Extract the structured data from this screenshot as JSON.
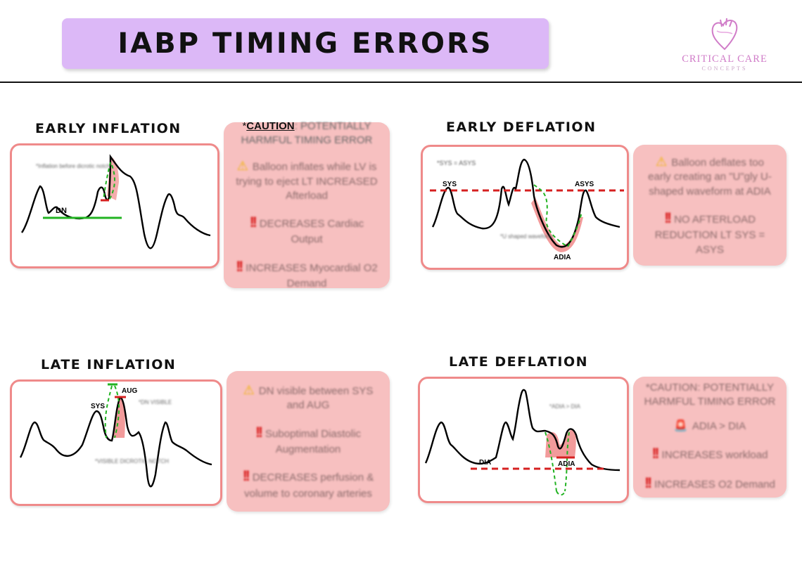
{
  "header": {
    "title": "IABP TIMING ERRORS",
    "logo_name": "CRITICAL CARE",
    "logo_sub": "CONCEPTS"
  },
  "colors": {
    "banner": "#dcb8f7",
    "box_border": "#ef8a8a",
    "note_bg": "#f7c0c0",
    "dashed_red": "#d62020",
    "green": "#22b322",
    "highlight": "#e88080"
  },
  "early_inflation": {
    "title": "EARLY INFLATION",
    "labels": {
      "dn": "DN",
      "blurred_note": "*Inflation before dicrotic notch"
    },
    "notes": {
      "caution_prefix": "*",
      "caution_word": "CAUTION",
      "caution_rest": ": POTENTIALLY HARMFUL TIMING ERROR",
      "line1": "Balloon inflates while LV is trying to eject LT INCREASED Afterload",
      "line2": "DECREASES Cardiac Output",
      "line3": "INCREASES Myocardial O2 Demand"
    }
  },
  "early_deflation": {
    "title": "EARLY DEFLATION",
    "labels": {
      "sys": "SYS",
      "asys": "ASYS",
      "adia": "ADIA",
      "star_note": "*SYS = ASYS",
      "blurred_note": "*U shaped waveform"
    },
    "notes": {
      "line1": "Balloon deflates too early creating an \"U\"gly U-shaped waveform at ADIA",
      "line2": "NO AFTERLOAD REDUCTION LT SYS = ASYS"
    }
  },
  "late_inflation": {
    "title": "LATE INFLATION",
    "labels": {
      "sys": "SYS",
      "aug": "AUG",
      "blurred_note": "*DN VISIBLE",
      "blurred_note2": "*VISIBLE DICROTIC NOTCH"
    },
    "notes": {
      "line1": "DN visible between SYS and AUG",
      "line2": "Suboptimal Diastolic Augmentation",
      "line3": "DECREASES perfusion & volume to coronary arteries"
    }
  },
  "late_deflation": {
    "title": "LATE DEFLATION",
    "labels": {
      "dia": "DIA",
      "adia": "ADIA",
      "blurred_note": "*ADIA > DIA"
    },
    "notes": {
      "caution": "*CAUTION: POTENTIALLY HARMFUL TIMING ERROR",
      "line1": "ADIA > DIA",
      "line2": "INCREASES workload",
      "line3": "INCREASES O2 Demand"
    }
  }
}
